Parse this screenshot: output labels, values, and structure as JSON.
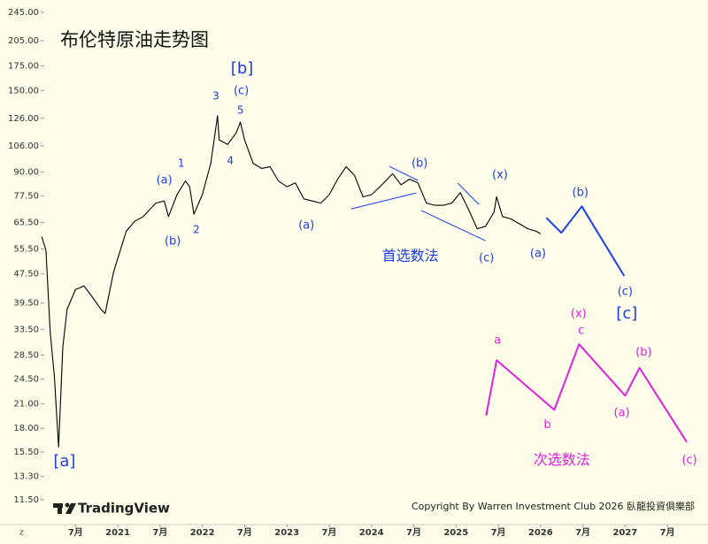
{
  "chart_data": {
    "type": "line",
    "title": "布伦特原油走势图",
    "log_scale": true,
    "color": "#000000",
    "xlim": [
      2019.607,
      2027.98
    ],
    "ylim": [
      9.73,
      264.8
    ],
    "xticks": [
      {
        "value": 2020.5,
        "label": "7月"
      },
      2021,
      {
        "value": 2021.5,
        "label": "7月"
      },
      2022,
      {
        "value": 2022.5,
        "label": "7月"
      },
      2023,
      {
        "value": 2023.5,
        "label": "7月"
      },
      2024,
      {
        "value": 2024.5,
        "label": "7月"
      },
      2025,
      {
        "value": 2025.5,
        "label": "7月"
      },
      2026,
      {
        "value": 2026.5,
        "label": "7月"
      },
      2027,
      {
        "value": 2027.5,
        "label": "7月"
      }
    ],
    "yticks": [
      {
        "value": 245,
        "label": "245.00"
      },
      {
        "value": 205,
        "label": "205.00"
      },
      {
        "value": 175,
        "label": "175.00"
      },
      {
        "value": 150,
        "label": "150.00"
      },
      {
        "value": 126,
        "label": "126.00"
      },
      {
        "value": 106,
        "label": "106.00"
      },
      {
        "value": 90,
        "label": "90.00"
      },
      {
        "value": 77.5,
        "label": "77.50"
      },
      {
        "value": 65.5,
        "label": "65.50"
      },
      {
        "value": 55.5,
        "label": "55.50"
      },
      {
        "value": 47.5,
        "label": "47.50"
      },
      {
        "value": 39.5,
        "label": "39.50"
      },
      {
        "value": 33.5,
        "label": "33.50"
      },
      {
        "value": 28.5,
        "label": "28.50"
      },
      {
        "value": 24.5,
        "label": "24.50"
      },
      {
        "value": 21,
        "label": "21.00"
      },
      {
        "value": 18,
        "label": "18.00"
      },
      {
        "value": 15.5,
        "label": "15.50"
      },
      {
        "value": 13.3,
        "label": "13.30"
      },
      {
        "value": 11.5,
        "label": "11.50"
      }
    ],
    "corner_label": "z",
    "x": [
      2020.1,
      2020.15,
      2020.2,
      2020.25,
      2020.3,
      2020.35,
      2020.4,
      2020.5,
      2020.6,
      2020.7,
      2020.8,
      2020.85,
      2020.95,
      2021.1,
      2021.2,
      2021.3,
      2021.45,
      2021.55,
      2021.6,
      2021.7,
      2021.8,
      2021.85,
      2021.9,
      2022.0,
      2022.1,
      2022.18,
      2022.2,
      2022.3,
      2022.4,
      2022.45,
      2022.5,
      2022.6,
      2022.7,
      2022.8,
      2022.9,
      2023.0,
      2023.1,
      2023.2,
      2023.3,
      2023.4,
      2023.5,
      2023.6,
      2023.7,
      2023.8,
      2023.9,
      2024.0,
      2024.1,
      2024.25,
      2024.35,
      2024.45,
      2024.55,
      2024.65,
      2024.75,
      2024.85,
      2024.95,
      2025.05,
      2025.15,
      2025.25,
      2025.35,
      2025.45,
      2025.48,
      2025.55,
      2025.65,
      2025.75,
      2025.85,
      2025.95,
      2026.0
    ],
    "values": [
      60,
      55,
      33,
      25,
      16,
      30,
      38,
      43,
      44,
      41,
      38,
      37,
      48,
      62,
      66,
      68,
      74,
      75,
      68,
      78,
      85,
      82,
      69,
      78,
      95,
      128,
      110,
      107,
      115,
      123,
      110,
      95,
      92,
      93,
      85,
      82,
      84,
      76,
      75,
      74,
      78,
      86,
      93,
      88,
      77,
      78,
      82,
      89,
      83,
      86,
      84,
      74,
      73,
      73,
      74,
      79,
      71,
      63,
      64,
      70,
      77,
      68,
      67,
      65,
      63,
      62,
      61
    ],
    "projections": [
      {
        "color": "#1e3cf0",
        "x": [
          2026.068,
          2026.246,
          2026.487,
          2026.99
        ],
        "values": [
          67.5,
          61.4,
          72.5,
          46.8
        ]
      },
      {
        "color": "#e020e0",
        "x": [
          2025.356,
          2025.481,
          2026.162,
          2026.455,
          2027.0,
          2027.17,
          2027.73
        ],
        "values": [
          19.5,
          27.6,
          20.2,
          30.5,
          22.1,
          26.3,
          16.5
        ]
      }
    ],
    "trendlines": [
      {
        "color": "#1e3cf0",
        "x": [
          2023.76,
          2024.53
        ],
        "values": [
          71.4,
          78.9
        ]
      },
      {
        "color": "#1e3cf0",
        "x": [
          2024.21,
          2024.55
        ],
        "values": [
          93.2,
          85.3
        ]
      },
      {
        "color": "#1e3cf0",
        "x": [
          2024.59,
          2025.35
        ],
        "values": [
          70.6,
          58.4
        ]
      },
      {
        "color": "#1e3cf0",
        "x": [
          2025.02,
          2025.27
        ],
        "values": [
          83.9,
          73.4
        ]
      }
    ],
    "annotations": [
      {
        "text": "[b]",
        "x": 2022.47,
        "y": 171.7,
        "color": "#1e3cf0",
        "size": 18
      },
      {
        "text": "(c)",
        "x": 2022.46,
        "y": 149.5,
        "color": "#1e3cf0",
        "size": 13
      },
      {
        "text": "3",
        "x": 2022.16,
        "y": 144.5,
        "color": "#1e3cf0",
        "size": 12
      },
      {
        "text": "5",
        "x": 2022.45,
        "y": 132.3,
        "color": "#1e3cf0",
        "size": 12
      },
      {
        "text": "4",
        "x": 2022.33,
        "y": 96.4,
        "color": "#1e3cf0",
        "size": 12
      },
      {
        "text": "1",
        "x": 2021.75,
        "y": 94.7,
        "color": "#1e3cf0",
        "size": 12
      },
      {
        "text": "(a)",
        "x": 2021.55,
        "y": 85.3,
        "color": "#1e3cf0",
        "size": 13
      },
      {
        "text": "(b)",
        "x": 2021.65,
        "y": 58.1,
        "color": "#1e3cf0",
        "size": 13
      },
      {
        "text": "2",
        "x": 2021.93,
        "y": 62.5,
        "color": "#1e3cf0",
        "size": 12
      },
      {
        "text": "(a)",
        "x": 2023.23,
        "y": 64.2,
        "color": "#1e3cf0",
        "size": 13
      },
      {
        "text": "(b)",
        "x": 2024.57,
        "y": 94.7,
        "color": "#1e3cf0",
        "size": 13
      },
      {
        "text": "(x)",
        "x": 2025.52,
        "y": 88.2,
        "color": "#1e3cf0",
        "size": 13
      },
      {
        "text": "(b)",
        "x": 2026.47,
        "y": 78.9,
        "color": "#1e3cf0",
        "size": 13
      },
      {
        "text": "(c)",
        "x": 2025.36,
        "y": 52.3,
        "color": "#1e3cf0",
        "size": 13
      },
      {
        "text": "(a)",
        "x": 2025.97,
        "y": 53.8,
        "color": "#1e3cf0",
        "size": 13
      },
      {
        "text": "首选数法",
        "x": 2024.46,
        "y": 52.9,
        "color": "#1e3cf0",
        "size": 16
      },
      {
        "text": "(c)",
        "x": 2027.0,
        "y": 42.4,
        "color": "#1e3cf0",
        "size": 13
      },
      {
        "text": "[c]",
        "x": 2027.02,
        "y": 36.9,
        "color": "#1e3cf0",
        "size": 18
      },
      {
        "text": "[a]",
        "x": 2020.37,
        "y": 14.6,
        "color": "#1e3cf0",
        "size": 18
      },
      {
        "text": "(x)",
        "x": 2026.45,
        "y": 36.9,
        "color": "#e020e0",
        "size": 13
      },
      {
        "text": "a",
        "x": 2025.49,
        "y": 31.2,
        "color": "#e020e0",
        "size": 13
      },
      {
        "text": "c",
        "x": 2026.48,
        "y": 33.2,
        "color": "#e020e0",
        "size": 13
      },
      {
        "text": "(b)",
        "x": 2027.22,
        "y": 29.0,
        "color": "#e020e0",
        "size": 13
      },
      {
        "text": "b",
        "x": 2026.08,
        "y": 18.4,
        "color": "#e020e0",
        "size": 13
      },
      {
        "text": "(a)",
        "x": 2026.96,
        "y": 19.8,
        "color": "#e020e0",
        "size": 13
      },
      {
        "text": "次选数法",
        "x": 2026.25,
        "y": 14.7,
        "color": "#e020e0",
        "size": 16
      },
      {
        "text": "(c)",
        "x": 2027.76,
        "y": 14.7,
        "color": "#e020e0",
        "size": 13
      }
    ],
    "watermark": "TradingView",
    "copyright": "Copyright By Warren Investment Club 2026 臥龍投資俱樂部"
  }
}
